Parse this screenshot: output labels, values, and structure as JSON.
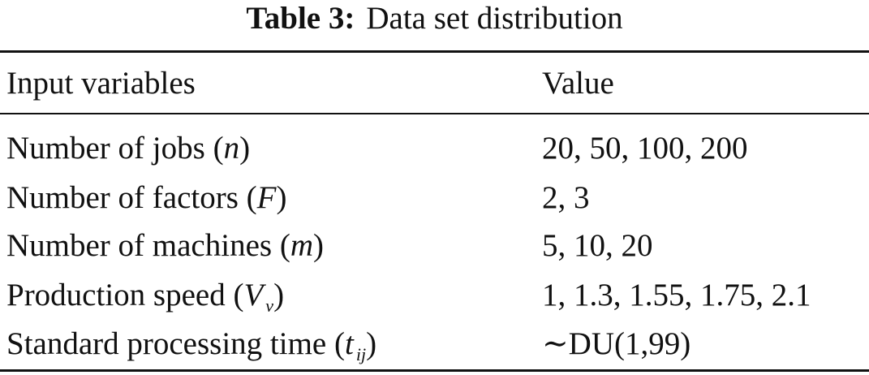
{
  "caption": {
    "label": "Table 3:",
    "title": "Data set distribution"
  },
  "table": {
    "headers": [
      "Input variables",
      "Value"
    ],
    "rows": [
      {
        "variable": "Number of jobs",
        "symbol": "n",
        "value": "20, 50, 100, 200"
      },
      {
        "variable": "Number of factors",
        "symbol": "F",
        "value": "2, 3"
      },
      {
        "variable": "Number of machines",
        "symbol": "m",
        "value": "5, 10, 20"
      },
      {
        "variable": "Production speed",
        "symbol": "V",
        "subscript": "v",
        "value": "1, 1.3, 1.55, 1.75, 2.1"
      },
      {
        "variable": "Standard processing time",
        "symbol": "t",
        "subscript": "ij",
        "value": "∼DU(1,99)"
      }
    ]
  }
}
